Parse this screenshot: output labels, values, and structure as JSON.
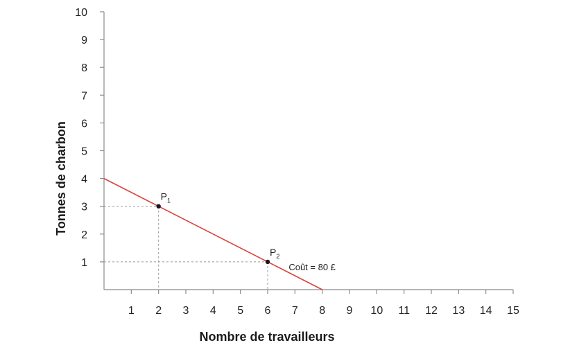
{
  "chart_data": {
    "type": "line",
    "xlabel": "Nombre de travailleurs",
    "ylabel": "Tonnes de charbon",
    "xlim": [
      0,
      15
    ],
    "ylim": [
      0,
      10
    ],
    "xticks": [
      "1",
      "2",
      "3",
      "4",
      "5",
      "6",
      "7",
      "8",
      "9",
      "10",
      "11",
      "12",
      "13",
      "14",
      "15"
    ],
    "yticks": [
      "1",
      "2",
      "3",
      "4",
      "5",
      "6",
      "7",
      "8",
      "9",
      "10"
    ],
    "grid": false,
    "series": [
      {
        "x": [
          0,
          8
        ],
        "y": [
          4,
          0
        ],
        "color": "#d9413a"
      }
    ],
    "points": [
      {
        "label": "P",
        "sub": "1",
        "x": 2,
        "y": 3
      },
      {
        "label": "P",
        "sub": "2",
        "x": 6,
        "y": 1
      }
    ],
    "annotation": {
      "text": "Coût = 80 £",
      "x": 7,
      "y": 0.8
    }
  }
}
